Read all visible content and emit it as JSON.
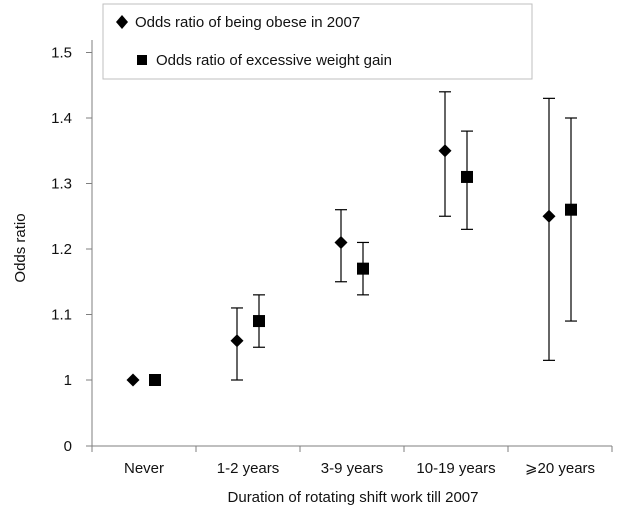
{
  "chart_data": {
    "type": "scatter",
    "title": "",
    "xlabel": "Duration of rotating shift work till 2007",
    "ylabel": "Odds ratio",
    "categories": [
      "Never",
      "1-2 years",
      "3-9 years",
      "10-19 years",
      "⩾20 years"
    ],
    "y_ticks": [
      "0",
      "1",
      "1.1",
      "1.2",
      "1.3",
      "1.4",
      "1.5"
    ],
    "y_axis_note": "axis break between 0 and 1",
    "grid": false,
    "legend_position": "top",
    "series": [
      {
        "name": "Odds ratio of being obese in 2007",
        "marker": "diamond",
        "values": [
          1.0,
          1.06,
          1.21,
          1.35,
          1.25
        ],
        "lower": [
          1.0,
          1.0,
          1.15,
          1.25,
          1.03
        ],
        "upper": [
          1.0,
          1.11,
          1.26,
          1.44,
          1.43
        ]
      },
      {
        "name": "Odds ratio of excessive weight gain",
        "marker": "square",
        "values": [
          1.0,
          1.09,
          1.17,
          1.31,
          1.26
        ],
        "lower": [
          1.0,
          1.05,
          1.13,
          1.23,
          1.09
        ],
        "upper": [
          1.0,
          1.13,
          1.21,
          1.38,
          1.4
        ]
      }
    ],
    "colors": {
      "marker": "#000000",
      "axis": "#7f7f7f",
      "legend_border": "#bfbfbf"
    }
  }
}
